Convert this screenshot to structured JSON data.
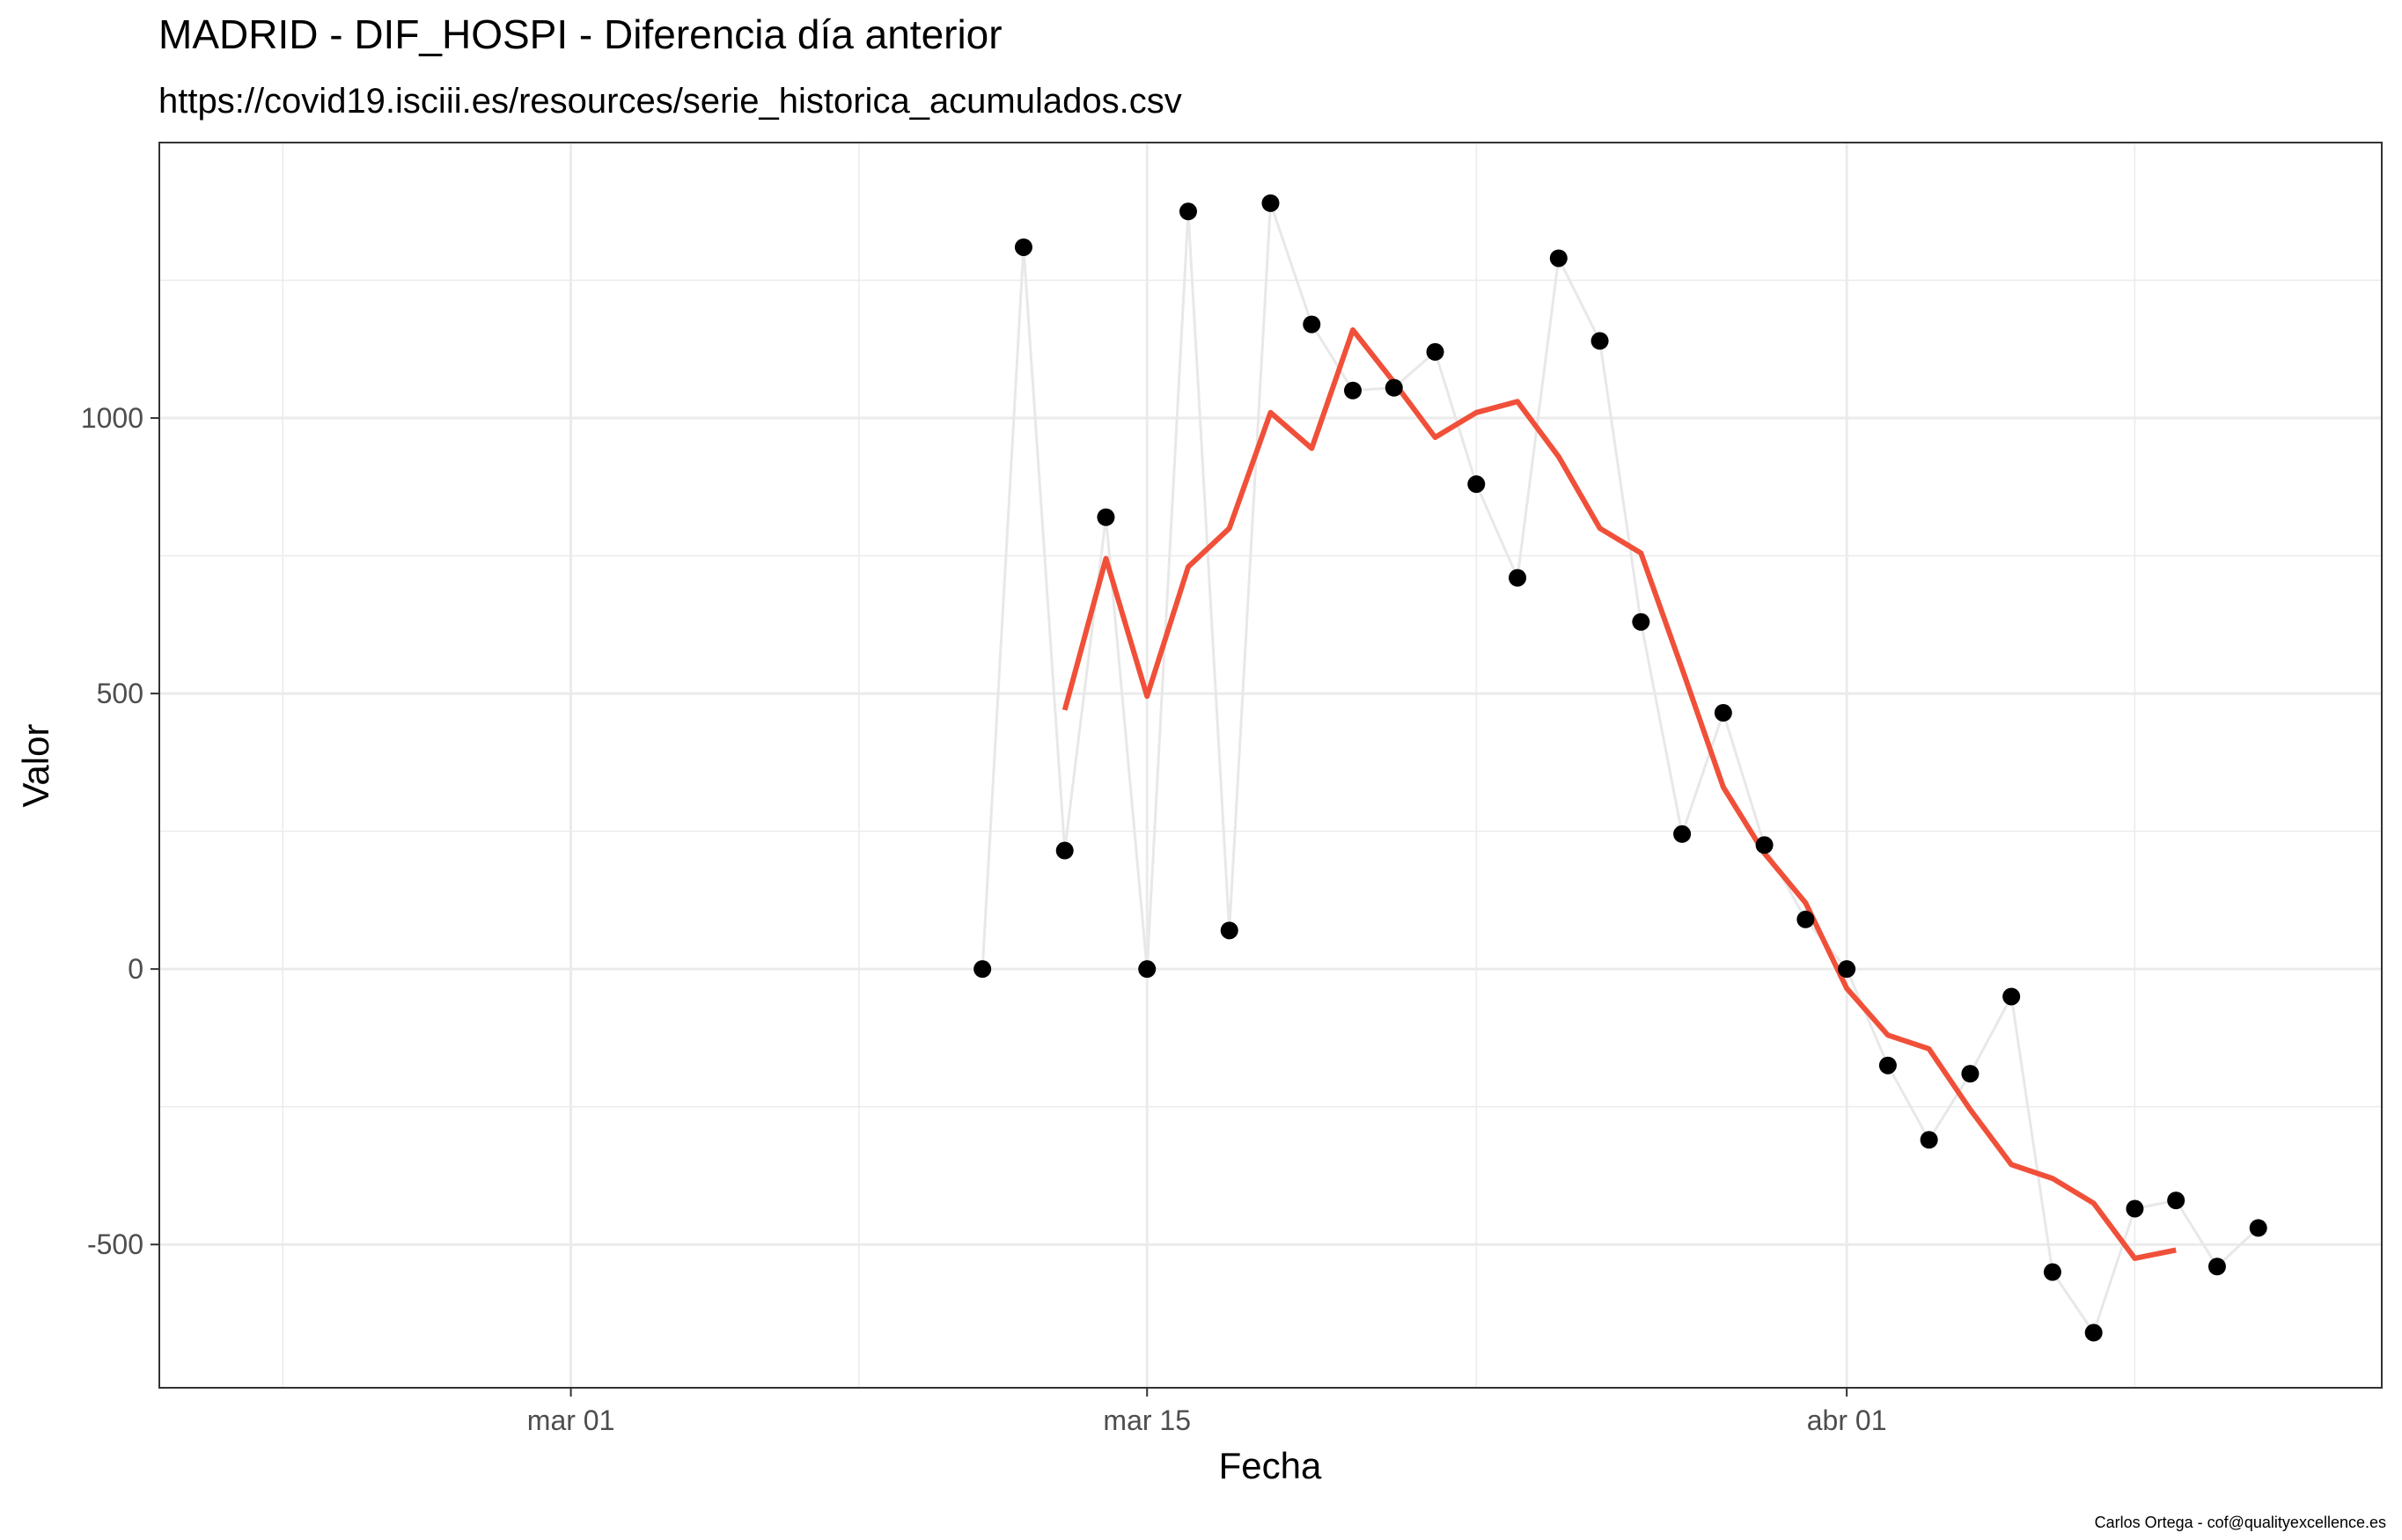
{
  "chart_data": {
    "type": "line",
    "title": "MADRID - DIF_HOSPI - Diferencia día anterior",
    "subtitle": "https://covid19.isciii.es/resources/serie_historica_acumulados.csv",
    "xlabel": "Fecha",
    "ylabel": "Valor",
    "caption": "Carlos Ortega - cof@qualityexcellence.es",
    "xlim": [
      "2020-02-20",
      "2020-04-14"
    ],
    "ylim": [
      -760,
      1500
    ],
    "x_ticks": [
      {
        "date": "2020-03-01",
        "label": "mar 01"
      },
      {
        "date": "2020-03-15",
        "label": "mar 15"
      },
      {
        "date": "2020-04-01",
        "label": "abr 01"
      }
    ],
    "x_minor_dates": [
      "2020-02-23",
      "2020-03-08",
      "2020-03-23",
      "2020-04-08"
    ],
    "y_ticks": [
      {
        "value": 1000,
        "label": "1000"
      },
      {
        "value": 500,
        "label": "500"
      },
      {
        "value": 0,
        "label": "0"
      },
      {
        "value": -500,
        "label": "-500"
      }
    ],
    "y_minor_values": [
      1250,
      750,
      250,
      -250
    ],
    "grid": true,
    "legend": "none",
    "colors": {
      "points": "#000000",
      "raw_line": "#e8e8e8",
      "smooth_line": "#f05039",
      "grid": "#ebebeb",
      "border": "#333333"
    },
    "series": [
      {
        "kind": "points-with-line",
        "x": [
          "2020-03-11",
          "2020-03-12",
          "2020-03-13",
          "2020-03-14",
          "2020-03-15",
          "2020-03-16",
          "2020-03-17",
          "2020-03-18",
          "2020-03-19",
          "2020-03-20",
          "2020-03-21",
          "2020-03-22",
          "2020-03-23",
          "2020-03-24",
          "2020-03-25",
          "2020-03-26",
          "2020-03-27",
          "2020-03-28",
          "2020-03-29",
          "2020-03-30",
          "2020-03-31",
          "2020-04-01",
          "2020-04-02",
          "2020-04-03",
          "2020-04-04",
          "2020-04-05",
          "2020-04-06",
          "2020-04-07",
          "2020-04-08",
          "2020-04-09",
          "2020-04-10",
          "2020-04-11"
        ],
        "values": [
          0,
          1310,
          215,
          820,
          0,
          1375,
          70,
          1390,
          1170,
          1050,
          1055,
          1120,
          880,
          710,
          1290,
          1140,
          630,
          245,
          465,
          225,
          90,
          0,
          -175,
          -310,
          -190,
          -50,
          -550,
          -660,
          -435,
          -420,
          -540,
          -470
        ]
      },
      {
        "kind": "moving-average",
        "x": [
          "2020-03-13",
          "2020-03-14",
          "2020-03-15",
          "2020-03-16",
          "2020-03-17",
          "2020-03-18",
          "2020-03-19",
          "2020-03-20",
          "2020-03-21",
          "2020-03-22",
          "2020-03-23",
          "2020-03-24",
          "2020-03-25",
          "2020-03-26",
          "2020-03-27",
          "2020-03-28",
          "2020-03-29",
          "2020-03-30",
          "2020-03-31",
          "2020-04-01",
          "2020-04-02",
          "2020-04-03",
          "2020-04-04",
          "2020-04-05",
          "2020-04-06",
          "2020-04-07",
          "2020-04-08",
          "2020-04-09"
        ],
        "values": [
          470,
          745,
          495,
          730,
          800,
          1010,
          945,
          1160,
          1065,
          965,
          1010,
          1030,
          930,
          800,
          755,
          545,
          330,
          210,
          120,
          -35,
          -120,
          -145,
          -255,
          -355,
          -380,
          -425,
          -525,
          -510
        ]
      }
    ]
  }
}
